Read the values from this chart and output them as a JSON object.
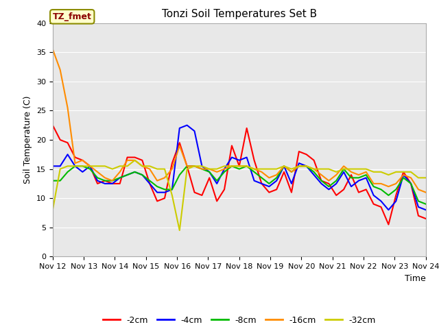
{
  "title": "Tonzi Soil Temperatures Set B",
  "xlabel": "Time",
  "ylabel": "Soil Temperature (C)",
  "ylim": [
    0,
    40
  ],
  "yticks": [
    0,
    5,
    10,
    15,
    20,
    25,
    30,
    35,
    40
  ],
  "annotation_label": "TZ_fmet",
  "annotation_color": "#8B0000",
  "annotation_bg": "#FFFFCC",
  "annotation_border": "#8B8B00",
  "bg_color": "#E8E8E8",
  "series_order": [
    "-2cm",
    "-4cm",
    "-8cm",
    "-16cm",
    "-32cm"
  ],
  "series": {
    "-2cm": {
      "color": "#FF0000",
      "lw": 1.5
    },
    "-4cm": {
      "color": "#0000FF",
      "lw": 1.5
    },
    "-8cm": {
      "color": "#00BB00",
      "lw": 1.5
    },
    "-16cm": {
      "color": "#FF8C00",
      "lw": 1.5
    },
    "-32cm": {
      "color": "#CCCC00",
      "lw": 1.5
    }
  },
  "x_labels": [
    "Nov 12",
    "Nov 13",
    "Nov 14",
    "Nov 15",
    "Nov 16",
    "Nov 17",
    "Nov 18",
    "Nov 19",
    "Nov 20",
    "Nov 21",
    "Nov 22",
    "Nov 23",
    "Nov 24"
  ],
  "x_positions": [
    0,
    1,
    2,
    3,
    4,
    5,
    6,
    7,
    8,
    9,
    10,
    11,
    12
  ],
  "data": {
    "-2cm": [
      22.5,
      20.0,
      19.5,
      17.0,
      16.5,
      15.5,
      12.5,
      13.0,
      12.5,
      12.5,
      17.0,
      17.0,
      16.5,
      12.5,
      9.5,
      10.0,
      16.0,
      19.5,
      15.5,
      11.0,
      10.5,
      13.5,
      9.5,
      11.5,
      19.0,
      15.5,
      22.0,
      16.5,
      12.5,
      11.0,
      11.5,
      14.5,
      11.0,
      18.0,
      17.5,
      16.5,
      13.0,
      12.5,
      10.5,
      11.5,
      14.0,
      11.0,
      11.5,
      9.0,
      8.5,
      5.5,
      10.5,
      14.5,
      12.5,
      7.0,
      6.5
    ],
    "-4cm": [
      15.5,
      15.5,
      17.5,
      15.5,
      14.5,
      15.5,
      13.0,
      12.5,
      12.5,
      13.5,
      14.0,
      14.5,
      14.0,
      12.5,
      11.0,
      11.0,
      11.5,
      22.0,
      22.5,
      21.5,
      15.5,
      14.5,
      12.5,
      15.0,
      17.0,
      16.5,
      17.0,
      13.0,
      12.5,
      12.0,
      13.0,
      15.5,
      12.5,
      16.0,
      15.5,
      14.0,
      12.5,
      11.5,
      12.5,
      14.5,
      12.0,
      13.0,
      13.5,
      10.5,
      9.5,
      8.0,
      9.5,
      14.0,
      12.5,
      8.5,
      8.0
    ],
    "-8cm": [
      13.0,
      13.0,
      14.5,
      15.5,
      15.5,
      15.0,
      13.5,
      13.0,
      13.0,
      13.5,
      14.0,
      14.5,
      14.0,
      13.0,
      12.0,
      11.5,
      11.5,
      14.0,
      15.5,
      15.5,
      15.0,
      14.5,
      13.0,
      14.5,
      15.5,
      15.0,
      15.5,
      14.5,
      13.5,
      12.5,
      13.5,
      15.5,
      14.5,
      15.5,
      15.5,
      14.5,
      13.0,
      12.0,
      13.0,
      15.0,
      13.5,
      13.5,
      14.0,
      12.0,
      11.5,
      10.5,
      11.5,
      13.5,
      12.5,
      9.5,
      9.0
    ],
    "-16cm": [
      35.5,
      32.0,
      25.5,
      16.0,
      16.5,
      15.5,
      14.5,
      13.5,
      13.0,
      14.5,
      16.5,
      16.5,
      15.5,
      15.0,
      13.0,
      13.5,
      15.0,
      19.0,
      15.5,
      15.5,
      15.0,
      15.0,
      14.5,
      15.0,
      15.5,
      15.5,
      15.5,
      15.0,
      14.5,
      13.5,
      14.0,
      15.5,
      14.5,
      15.5,
      15.5,
      15.0,
      14.0,
      13.0,
      14.0,
      15.5,
      14.5,
      14.0,
      14.5,
      12.5,
      12.5,
      12.0,
      12.5,
      14.0,
      13.5,
      11.5,
      11.0
    ],
    "-32cm": [
      8.0,
      15.0,
      15.5,
      15.5,
      15.5,
      15.5,
      15.5,
      15.5,
      15.0,
      15.5,
      15.5,
      16.5,
      15.5,
      15.5,
      15.0,
      15.0,
      10.5,
      4.5,
      15.0,
      15.5,
      15.5,
      15.0,
      15.0,
      15.5,
      15.5,
      15.5,
      15.5,
      15.0,
      15.0,
      15.0,
      15.0,
      15.5,
      15.0,
      15.5,
      15.5,
      15.0,
      15.0,
      15.0,
      14.5,
      15.0,
      15.0,
      15.0,
      15.0,
      14.5,
      14.5,
      14.0,
      14.5,
      14.5,
      14.5,
      13.5,
      13.5
    ]
  }
}
